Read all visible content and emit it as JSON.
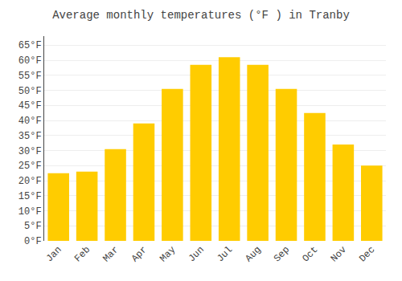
{
  "chart_data": {
    "type": "bar",
    "title": "Average monthly temperatures (°F ) in Tranby",
    "categories": [
      "Jan",
      "Feb",
      "Mar",
      "Apr",
      "May",
      "Jun",
      "Jul",
      "Aug",
      "Sep",
      "Oct",
      "Nov",
      "Dec"
    ],
    "values": [
      22.5,
      23.0,
      30.5,
      39.0,
      50.5,
      58.5,
      61.0,
      58.5,
      50.5,
      42.5,
      32.0,
      25.0
    ],
    "color": "#FFCC00",
    "ylim": [
      0,
      68
    ],
    "yticks": [
      {
        "value": 0,
        "label": "0°F"
      },
      {
        "value": 5,
        "label": "5°F"
      },
      {
        "value": 10,
        "label": "10°F"
      },
      {
        "value": 15,
        "label": "15°F"
      },
      {
        "value": 20,
        "label": "20°F"
      },
      {
        "value": 25,
        "label": "25°F"
      },
      {
        "value": 30,
        "label": "30°F"
      },
      {
        "value": 35,
        "label": "35°F"
      },
      {
        "value": 40,
        "label": "40°F"
      },
      {
        "value": 45,
        "label": "45°F"
      },
      {
        "value": 50,
        "label": "50°F"
      },
      {
        "value": 55,
        "label": "55°F"
      },
      {
        "value": 60,
        "label": "60°F"
      },
      {
        "value": 65,
        "label": "65°F"
      }
    ],
    "grid": true
  }
}
